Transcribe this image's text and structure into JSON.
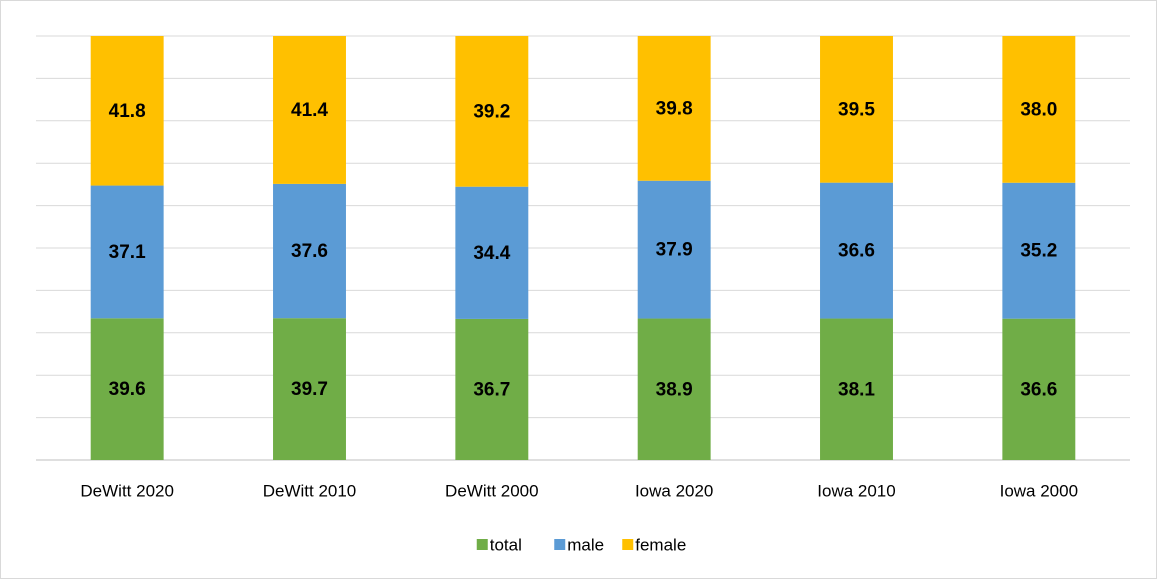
{
  "chart_data": {
    "type": "bar",
    "stack": "percent",
    "categories": [
      "DeWitt 2020",
      "DeWitt 2010",
      "DeWitt 2000",
      "Iowa 2020",
      "Iowa 2010",
      "Iowa 2000"
    ],
    "series": [
      {
        "name": "total",
        "color": "#70ad47",
        "values": [
          39.6,
          39.7,
          36.7,
          38.9,
          38.1,
          36.6
        ]
      },
      {
        "name": "male",
        "color": "#5b9bd5",
        "values": [
          37.1,
          37.6,
          34.4,
          37.9,
          36.6,
          35.2
        ]
      },
      {
        "name": "female",
        "color": "#ffc000",
        "values": [
          41.8,
          41.4,
          39.2,
          39.8,
          39.5,
          38.0
        ]
      }
    ],
    "value_labels": [
      [
        "39.6",
        "39.7",
        "36.7",
        "38.9",
        "38.1",
        "36.6"
      ],
      [
        "37.1",
        "37.6",
        "34.4",
        "37.9",
        "36.6",
        "35.2"
      ],
      [
        "41.8",
        "41.4",
        "39.2",
        "39.8",
        "39.5",
        "38.0"
      ]
    ],
    "ylim": [
      0,
      100
    ],
    "yticks": [
      0,
      10,
      20,
      30,
      40,
      50,
      60,
      70,
      80,
      90,
      100
    ],
    "grid": true,
    "tick_labels": false,
    "legend": "bottom"
  }
}
